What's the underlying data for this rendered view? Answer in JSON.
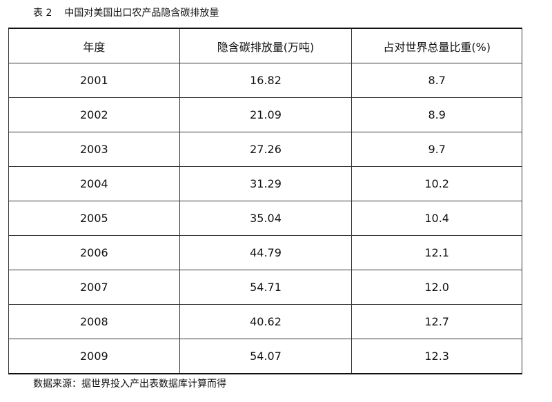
{
  "caption": {
    "label": "表 2",
    "title": "中国对美国出口农产品隐含碳排放量"
  },
  "table": {
    "header": [
      "年度",
      "隐含碳排放量(万吨)",
      "占对世界总量比重(%)"
    ],
    "rows": [
      [
        "2001",
        "16.82",
        "8.7"
      ],
      [
        "2002",
        "21.09",
        "8.9"
      ],
      [
        "2003",
        "27.26",
        "9.7"
      ],
      [
        "2004",
        "31.29",
        "10.2"
      ],
      [
        "2005",
        "35.04",
        "10.4"
      ],
      [
        "2006",
        "44.79",
        "12.1"
      ],
      [
        "2007",
        "54.71",
        "12.0"
      ],
      [
        "2008",
        "40.62",
        "12.7"
      ],
      [
        "2009",
        "54.07",
        "12.3"
      ]
    ]
  },
  "source": "数据来源：据世界投入产出表数据库计算而得"
}
